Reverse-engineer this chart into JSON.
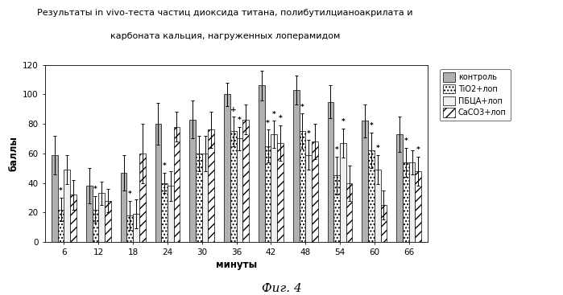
{
  "title_line1": "Результаты in vivo-теста частиц диоксида титана, полибутилцианоакрилата и",
  "title_line2": "карбоната кальция, нагруженных лоперамидом",
  "xlabel": "минуты",
  "ylabel": "баллы",
  "caption": "Фиг. 4",
  "x_labels": [
    "6",
    "12",
    "18",
    "24",
    "30",
    "36",
    "42",
    "48",
    "54",
    "60",
    "66"
  ],
  "kontrol": [
    59,
    38,
    47,
    80,
    83,
    100,
    106,
    103,
    95,
    82,
    73
  ],
  "tio2": [
    22,
    22,
    18,
    40,
    60,
    75,
    65,
    75,
    45,
    62,
    54
  ],
  "pbca": [
    49,
    33,
    19,
    38,
    60,
    70,
    73,
    59,
    67,
    49,
    54
  ],
  "caco3": [
    32,
    28,
    60,
    78,
    76,
    83,
    67,
    68,
    40,
    25,
    48
  ],
  "kontrol_err": [
    13,
    12,
    12,
    14,
    13,
    8,
    10,
    10,
    11,
    11,
    12
  ],
  "tio2_err": [
    8,
    9,
    10,
    7,
    12,
    10,
    11,
    12,
    13,
    12,
    10
  ],
  "pbca_err": [
    10,
    8,
    10,
    10,
    12,
    8,
    9,
    10,
    10,
    10,
    8
  ],
  "caco3_err": [
    10,
    8,
    20,
    10,
    12,
    10,
    12,
    12,
    12,
    10,
    10
  ],
  "annotations": {
    "6": {
      "tio2": "*"
    },
    "12": {
      "tio2": "*"
    },
    "18": {
      "tio2": "*"
    },
    "24": {
      "tio2": "*"
    },
    "36": {
      "tio2": "+",
      "pbca": "*"
    },
    "42": {
      "tio2": "*",
      "pbca": "*",
      "caco3": "*"
    },
    "48": {
      "tio2": "*",
      "pbca": "*"
    },
    "54": {
      "tio2": "*",
      "pbca": "*"
    },
    "60": {
      "tio2": "*",
      "pbca": "*"
    },
    "66": {
      "tio2": "*",
      "caco3": "*"
    }
  },
  "bar_width": 0.18,
  "background_color": "#f5f5f5",
  "kontrol_color": "#b0b0b0",
  "tio2_color": "#ffffff",
  "pbca_color": "#f0f0f0",
  "ylim": [
    0,
    120
  ],
  "yticks": [
    0,
    20,
    40,
    60,
    80,
    100,
    120
  ],
  "legend_labels": [
    "контроль",
    "TiO2+лоп",
    "ПБЦА+лоп",
    "CaCO3+лоп"
  ]
}
